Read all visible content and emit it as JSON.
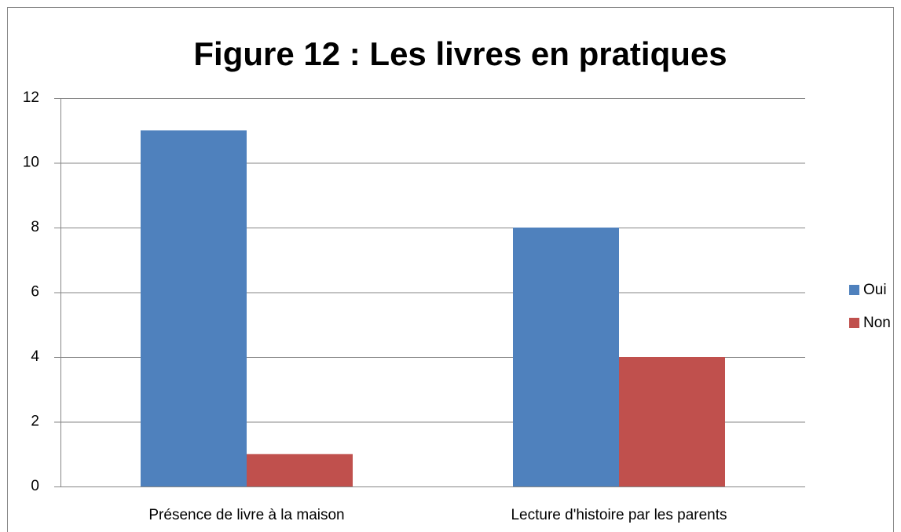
{
  "chart_data": {
    "type": "bar",
    "title": "Figure 12 : Les livres en pratiques",
    "categories": [
      "Présence de livre à la maison",
      "Lecture d'histoire par les parents"
    ],
    "series": [
      {
        "name": "Oui",
        "color": "#4f81bd",
        "values": [
          11,
          8
        ]
      },
      {
        "name": "Non",
        "color": "#c0504d",
        "values": [
          1,
          4
        ]
      }
    ],
    "ylim": [
      0,
      12
    ],
    "yticks": [
      0,
      2,
      4,
      6,
      8,
      10,
      12
    ],
    "grid": true,
    "legend": "right"
  }
}
